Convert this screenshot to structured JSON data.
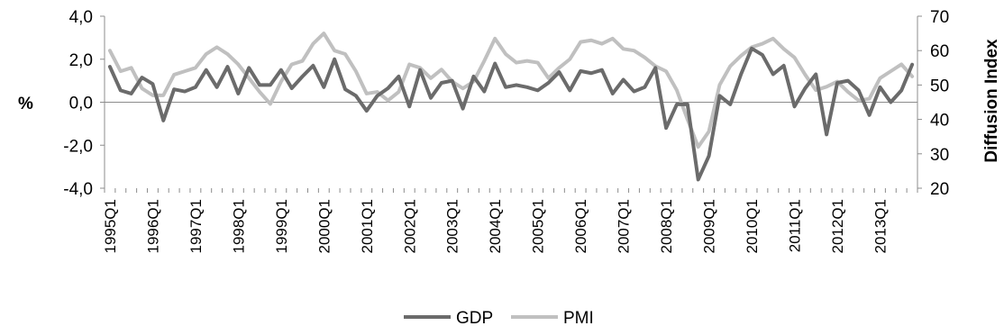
{
  "chart_data": {
    "type": "line",
    "y_left_label": "%",
    "y_right_label": "Diffusion Index",
    "y_left_range": [
      -4.0,
      4.0
    ],
    "y_right_range": [
      20,
      70
    ],
    "y_left_ticks": [
      "-4,0",
      "-2,0",
      "0,0",
      "2,0",
      "4,0"
    ],
    "y_right_ticks": [
      "20",
      "30",
      "40",
      "50",
      "60",
      "70"
    ],
    "x_tick_labels": [
      "1995Q1",
      "1996Q1",
      "1997Q1",
      "1998Q1",
      "1999Q1",
      "2000Q1",
      "2001Q1",
      "2002Q1",
      "2003Q1",
      "2004Q1",
      "2005Q1",
      "2006Q1",
      "2007Q1",
      "2008Q1",
      "2009Q1",
      "2010Q1",
      "2011Q1",
      "2012Q1",
      "2013Q1"
    ],
    "legend_position": "bottom",
    "gridlines": "horizontal zero line only",
    "series": [
      {
        "name": "GDP",
        "axis": "left",
        "color": "#6b6b6b",
        "values": [
          1.65,
          0.55,
          0.4,
          1.15,
          0.85,
          -0.85,
          0.6,
          0.5,
          0.7,
          1.5,
          0.7,
          1.65,
          0.4,
          1.6,
          0.8,
          0.8,
          1.5,
          0.65,
          1.2,
          1.7,
          0.7,
          2.0,
          0.6,
          0.3,
          -0.4,
          0.3,
          0.65,
          1.2,
          -0.2,
          1.5,
          0.2,
          0.9,
          1.0,
          -0.3,
          1.2,
          0.5,
          1.8,
          0.7,
          0.8,
          0.7,
          0.55,
          0.9,
          1.4,
          0.55,
          1.45,
          1.35,
          1.5,
          0.4,
          1.05,
          0.5,
          0.7,
          1.6,
          -1.2,
          -0.1,
          -0.1,
          -3.6,
          -2.5,
          0.3,
          -0.1,
          1.3,
          2.5,
          2.2,
          1.3,
          1.7,
          -0.2,
          0.65,
          1.3,
          -1.5,
          0.9,
          1.0,
          0.55,
          -0.6,
          0.7,
          0.0,
          0.55,
          1.75
        ]
      },
      {
        "name": "PMI",
        "axis": "right",
        "color": "#c0c0c0",
        "values": [
          60.0,
          54.0,
          55.0,
          49.0,
          47.0,
          47.0,
          53.0,
          54.0,
          55.0,
          59.0,
          61.0,
          59.0,
          56.0,
          52.0,
          48.0,
          44.5,
          51.0,
          56.0,
          57.0,
          62.0,
          65.0,
          60.0,
          59.0,
          54.0,
          47.5,
          48.0,
          45.5,
          48.0,
          56.0,
          55.0,
          52.0,
          54.5,
          51.0,
          49.0,
          51.0,
          57.0,
          63.5,
          59.0,
          56.5,
          57.0,
          56.5,
          52.0,
          55.0,
          57.5,
          62.5,
          63.0,
          62.0,
          63.5,
          60.5,
          60.0,
          58.0,
          55.5,
          54.0,
          48.5,
          40.0,
          32.0,
          36.5,
          50.0,
          55.5,
          58.5,
          61.0,
          62.0,
          63.5,
          60.5,
          58.0,
          53.0,
          48.5,
          49.5,
          51.0,
          48.0,
          45.5,
          46.0,
          52.0,
          54.0,
          56.0,
          52.5
        ]
      }
    ]
  }
}
